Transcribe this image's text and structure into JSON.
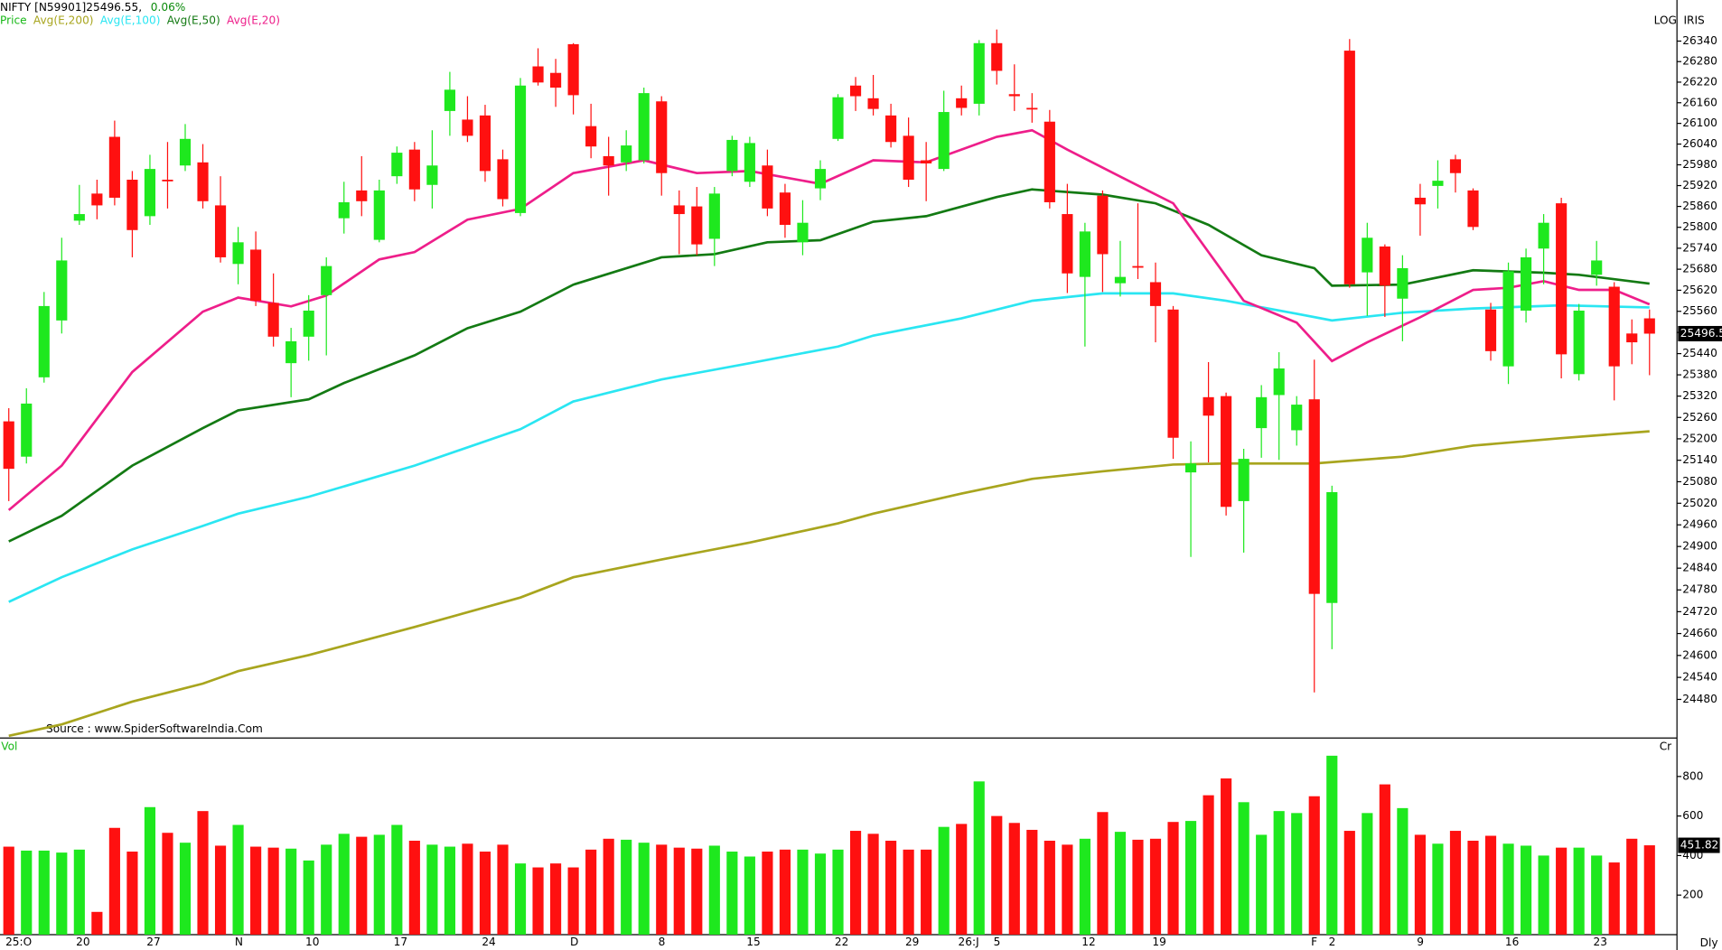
{
  "chart_data": [
    {
      "type": "candlestick",
      "title": "NIFTY [N59901]25496.55,",
      "change": "0.06%",
      "price_label": "Price",
      "source": "Source : www.SpiderSoftwareIndia.Com",
      "scale_label": "LOG",
      "tool_label": "IRIS",
      "period_label": "Dly",
      "log": true,
      "up_color": "#1ee81e",
      "down_color": "#ff1010",
      "ylim": [
        24375,
        26380
      ],
      "yticks": [
        24480,
        24540,
        24600,
        24660,
        24720,
        24780,
        24840,
        24900,
        24960,
        25020,
        25080,
        25140,
        25200,
        25260,
        25320,
        25380,
        25440,
        25500,
        25560,
        25620,
        25680,
        25740,
        25800,
        25860,
        25920,
        25980,
        26040,
        26100,
        26160,
        26220,
        26280,
        26340
      ],
      "last_label": "25496.5",
      "categories": [
        "25:O",
        null,
        null,
        null,
        "20",
        null,
        null,
        null,
        "27",
        null,
        null,
        null,
        null,
        "N",
        null,
        null,
        null,
        "10",
        null,
        null,
        null,
        null,
        "17",
        null,
        null,
        null,
        null,
        "24",
        null,
        null,
        null,
        null,
        "D",
        null,
        null,
        null,
        null,
        "8",
        null,
        null,
        null,
        null,
        "15",
        null,
        null,
        null,
        null,
        "22",
        null,
        null,
        null,
        "29",
        null,
        null,
        "26:J",
        null,
        "5",
        null,
        null,
        null,
        null,
        "12",
        null,
        null,
        null,
        "19",
        null,
        null,
        null,
        null,
        null,
        null,
        null,
        null,
        "F",
        "2",
        null,
        null,
        null,
        null,
        "9",
        null,
        null,
        null,
        null,
        "16",
        null,
        null,
        null,
        null,
        "23",
        null,
        null,
        null
      ],
      "open": [
        25249,
        25150,
        25373,
        25534,
        25819,
        25897,
        26061,
        25937,
        25832,
        25937,
        25978,
        25987,
        25863,
        25695,
        25736,
        25584,
        25413,
        25488,
        25606,
        25826,
        25906,
        25764,
        25947,
        26024,
        25922,
        26136,
        26111,
        26123,
        25996,
        25841,
        26266,
        26247,
        26331,
        26092,
        26005,
        25987,
        25993,
        26164,
        25863,
        25860,
        25767,
        25962,
        25931,
        25978,
        25900,
        25757,
        25912,
        26055,
        26210,
        26173,
        26123,
        26064,
        25993,
        25968,
        26173,
        26157,
        26334,
        26185,
        26145,
        26105,
        25838,
        25658,
        25891,
        25640,
        25689,
        25643,
        25565,
        25106,
        25317,
        25320,
        25026,
        25230,
        25323,
        25224,
        25311,
        24744,
        26312,
        25671,
        25745,
        25596,
        25885,
        25919,
        25996,
        25906,
        25565,
        25404,
        25562,
        25739,
        25869,
        25382,
        25664,
        25630,
        25497,
        25540
      ],
      "high": [
        25286,
        25342,
        25615,
        25770,
        25922,
        25937,
        26108,
        25962,
        26009,
        26046,
        26098,
        26040,
        25947,
        25801,
        25788,
        25668,
        25513,
        25606,
        25714,
        25931,
        26005,
        25937,
        26033,
        26046,
        26080,
        26250,
        26179,
        26154,
        26024,
        26232,
        26319,
        26288,
        26334,
        26157,
        26061,
        26080,
        26204,
        26179,
        25906,
        25916,
        25916,
        26064,
        26061,
        26024,
        25925,
        25878,
        25993,
        26185,
        26235,
        26241,
        26157,
        26117,
        26046,
        26195,
        26210,
        26343,
        26374,
        26272,
        26188,
        26139,
        25925,
        25813,
        25906,
        25761,
        25869,
        25699,
        25575,
        25193,
        25416,
        25330,
        25172,
        25351,
        25444,
        25320,
        25423,
        25069,
        26346,
        25813,
        25751,
        25720,
        25925,
        25993,
        26009,
        25912,
        25584,
        25699,
        25739,
        25838,
        25885,
        25581,
        25761,
        25643,
        25537,
        25565
      ],
      "low": [
        25026,
        25131,
        25358,
        25497,
        25807,
        25823,
        25863,
        25714,
        25807,
        25854,
        25962,
        25854,
        25699,
        25637,
        25575,
        25460,
        25317,
        25420,
        25435,
        25782,
        25832,
        25757,
        25925,
        25875,
        25854,
        26064,
        26046,
        25931,
        25860,
        25832,
        26210,
        26148,
        26126,
        25999,
        25891,
        25962,
        25984,
        25891,
        25723,
        25720,
        25689,
        25947,
        25916,
        25832,
        25770,
        25720,
        25878,
        26049,
        26136,
        26123,
        26030,
        25916,
        25875,
        25962,
        26123,
        26123,
        26213,
        26136,
        26102,
        25854,
        25612,
        25460,
        25615,
        25602,
        25652,
        25472,
        25144,
        24871,
        25134,
        24986,
        24883,
        25147,
        25141,
        25181,
        24499,
        24617,
        25627,
        25547,
        25544,
        25475,
        25776,
        25854,
        25900,
        25792,
        25420,
        25354,
        25528,
        25637,
        25370,
        25364,
        25633,
        25308,
        25410,
        25379
      ],
      "close": [
        25116,
        25299,
        25575,
        25705,
        25838,
        25863,
        25885,
        25792,
        25968,
        25934,
        26055,
        25875,
        25714,
        25757,
        25590,
        25488,
        25475,
        25562,
        25689,
        25872,
        25875,
        25906,
        26015,
        25909,
        25978,
        26198,
        26064,
        25962,
        25881,
        26210,
        26219,
        26204,
        26182,
        26033,
        25978,
        26036,
        26188,
        25956,
        25838,
        25751,
        25897,
        26052,
        26043,
        25854,
        25807,
        25813,
        25968,
        26176,
        26179,
        26142,
        26046,
        25937,
        25984,
        26133,
        26145,
        26334,
        26253,
        26179,
        26142,
        25872,
        25668,
        25788,
        25723,
        25658,
        25686,
        25575,
        25203,
        25131,
        25265,
        25010,
        25144,
        25317,
        25398,
        25296,
        24769,
        25051,
        25637,
        25770,
        25633,
        25683,
        25866,
        25934,
        25956,
        25801,
        25447,
        25674,
        25714,
        25813,
        25438,
        25562,
        25705,
        25404,
        25472,
        25496.55
      ],
      "overlays": [
        {
          "name": "Avg(E,200)",
          "color": "#a8a51e",
          "x": [
            0,
            3,
            7,
            11,
            13,
            17,
            23,
            29,
            32,
            37,
            42,
            47,
            49,
            54,
            58,
            62,
            66,
            69,
            74,
            79,
            83,
            88,
            93
          ],
          "values": [
            24381,
            24412,
            24474,
            24523,
            24557,
            24601,
            24678,
            24759,
            24815,
            24864,
            24911,
            24964,
            24991,
            25047,
            25088,
            25109,
            25128,
            25131,
            25131,
            25150,
            25181,
            25202,
            25221
          ]
        },
        {
          "name": "Avg(E,100)",
          "color": "#2ae6f2",
          "x": [
            0,
            3,
            7,
            11,
            13,
            17,
            23,
            29,
            32,
            37,
            42,
            47,
            49,
            54,
            58,
            62,
            66,
            69,
            73,
            75,
            79,
            83,
            88,
            93
          ],
          "values": [
            24747,
            24815,
            24892,
            24957,
            24991,
            25038,
            25125,
            25227,
            25305,
            25367,
            25413,
            25460,
            25491,
            25540,
            25590,
            25611,
            25611,
            25590,
            25553,
            25534,
            25556,
            25568,
            25577,
            25571
          ]
        },
        {
          "name": "Avg(E,50)",
          "color": "#137a13",
          "x": [
            0,
            3,
            7,
            11,
            13,
            17,
            19,
            23,
            26,
            29,
            32,
            37,
            40,
            43,
            46,
            49,
            52,
            56,
            58,
            62,
            65,
            68,
            71,
            74,
            75,
            79,
            83,
            87,
            89,
            93
          ],
          "values": [
            24914,
            24985,
            25125,
            25230,
            25280,
            25311,
            25357,
            25435,
            25512,
            25559,
            25636,
            25714,
            25723,
            25757,
            25763,
            25816,
            25832,
            25887,
            25909,
            25894,
            25869,
            25807,
            25720,
            25683,
            25633,
            25636,
            25677,
            25670,
            25664,
            25639
          ]
        },
        {
          "name": "Avg(E,20)",
          "color": "#ee1e8a",
          "x": [
            0,
            3,
            7,
            11,
            13,
            16,
            18,
            21,
            23,
            26,
            29,
            32,
            36,
            39,
            42,
            46,
            49,
            52,
            56,
            58,
            60,
            63,
            66,
            68,
            70,
            73,
            75,
            77,
            80,
            83,
            85,
            87,
            89,
            91,
            93
          ],
          "values": [
            25001,
            25125,
            25388,
            25559,
            25599,
            25574,
            25605,
            25708,
            25729,
            25822,
            25853,
            25956,
            25993,
            25956,
            25962,
            25925,
            25993,
            25987,
            26061,
            26080,
            26024,
            25946,
            25869,
            25729,
            25590,
            25528,
            25419,
            25472,
            25543,
            25621,
            25627,
            25646,
            25621,
            25621,
            25580
          ]
        }
      ]
    },
    {
      "type": "bar",
      "label": "Vol",
      "unit_label": "Cr",
      "ylim": [
        0,
        1000
      ],
      "yticks": [
        200,
        400,
        600,
        800
      ],
      "values": [
        445,
        425,
        425,
        415,
        430,
        115,
        540,
        420,
        645,
        515,
        465,
        625,
        450,
        555,
        445,
        440,
        435,
        375,
        455,
        510,
        495,
        505,
        555,
        475,
        455,
        445,
        460,
        420,
        455,
        360,
        340,
        360,
        340,
        430,
        485,
        480,
        465,
        455,
        440,
        435,
        450,
        420,
        395,
        420,
        430,
        430,
        410,
        430,
        525,
        510,
        475,
        430,
        430,
        545,
        560,
        775,
        600,
        565,
        530,
        475,
        455,
        485,
        620,
        520,
        480,
        485,
        570,
        575,
        705,
        790,
        670,
        505,
        625,
        615,
        700,
        905,
        525,
        615,
        760,
        640,
        505,
        460,
        525,
        475,
        500,
        460,
        450,
        400,
        440,
        440,
        400,
        365,
        485,
        451.82
      ]
    }
  ]
}
